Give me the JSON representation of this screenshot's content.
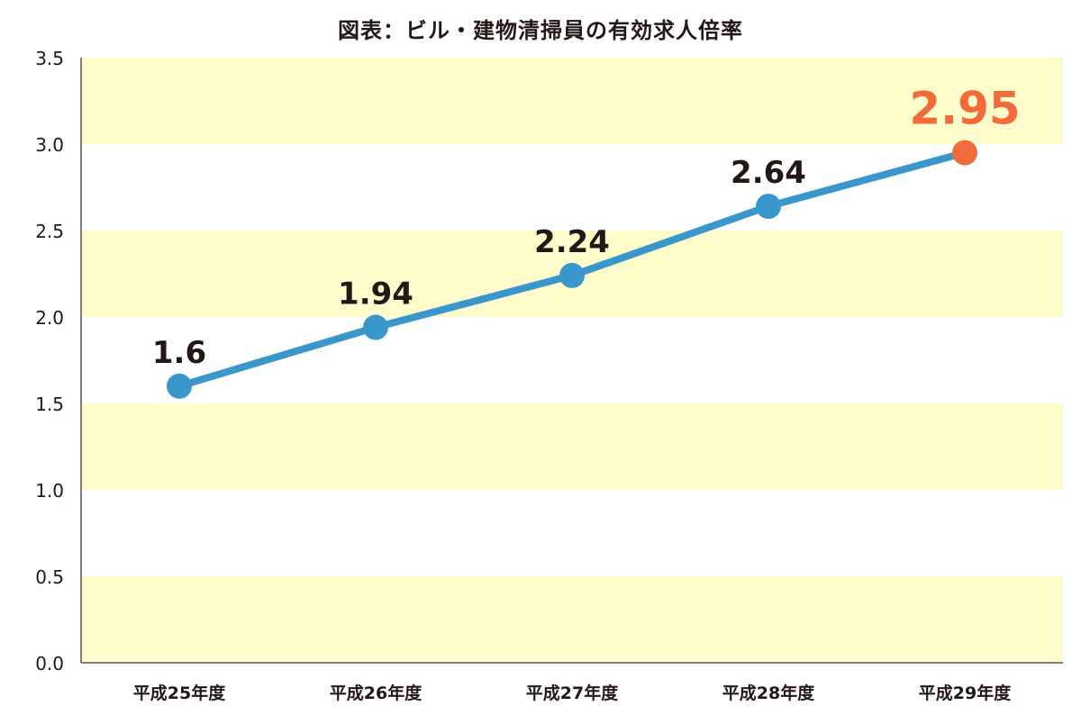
{
  "chart_data": {
    "type": "line",
    "title": "図表：ビル・建物清掃員の有効求人倍率",
    "xlabel": "",
    "ylabel": "",
    "categories": [
      "平成25年度",
      "平成26年度",
      "平成27年度",
      "平成28年度",
      "平成29年度"
    ],
    "series": [
      {
        "values": [
          1.6,
          1.94,
          2.24,
          2.64,
          2.95
        ],
        "data_labels": [
          "1.6",
          "1.94",
          "2.24",
          "2.64",
          "2.95"
        ]
      }
    ],
    "ylim": [
      0,
      3.5
    ],
    "y_ticks": [
      "0.0",
      "0.5",
      "1.0",
      "1.5",
      "2.0",
      "2.5",
      "3.0",
      "3.5"
    ],
    "y_tick_values": [
      0,
      0.5,
      1.0,
      1.5,
      2.0,
      2.5,
      3.0,
      3.5
    ],
    "background_bands": "alternating yellow and white per 0.5 step",
    "highlight": "last point (平成29年度) drawn in orange",
    "grid": false,
    "legend": "none",
    "colors": {
      "line": "#3a97cc",
      "point": "#3a97cc",
      "highlight": "#f26b3a",
      "band": "#fffccc",
      "label": "#231815",
      "axis": "#555555"
    }
  }
}
